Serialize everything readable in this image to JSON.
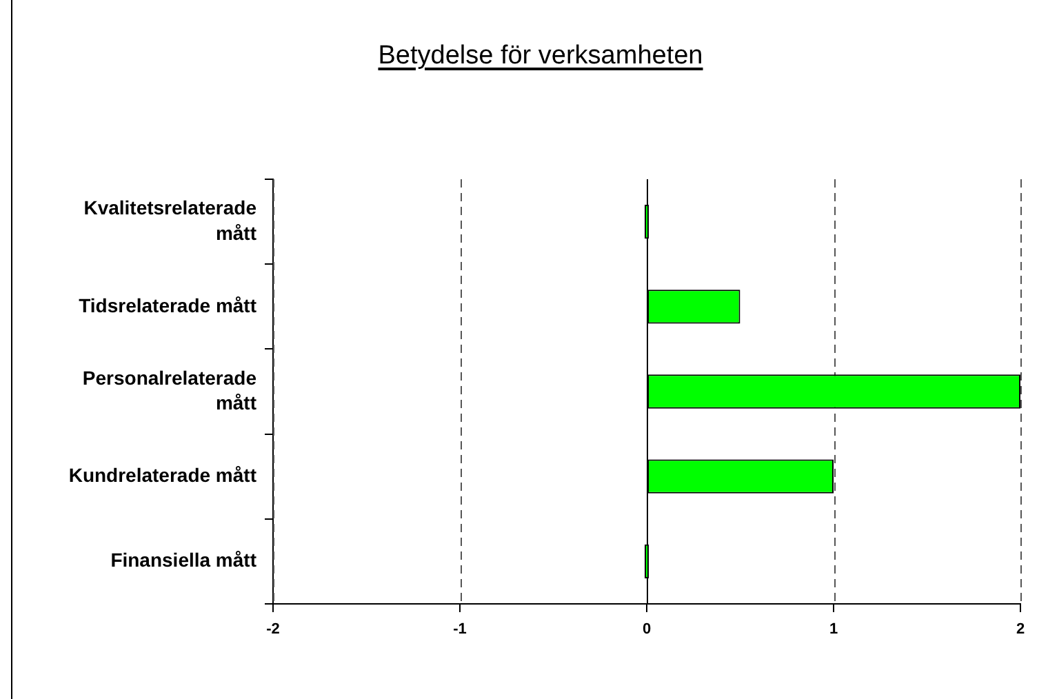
{
  "chart_data": {
    "type": "bar",
    "title": "Betydelse för verksamheten",
    "orientation": "horizontal",
    "categories": [
      "Kvalitetsrelaterade mått",
      "Tidsrelaterade mått",
      "Personalrelaterade mått",
      "Kundrelaterade mått",
      "Finansiella mått"
    ],
    "values": [
      0,
      0.5,
      2,
      1,
      0
    ],
    "color": "#00ff00",
    "xlim": [
      -2,
      2
    ],
    "xticks": [
      -2,
      -1,
      0,
      1,
      2
    ],
    "grid": "x"
  }
}
